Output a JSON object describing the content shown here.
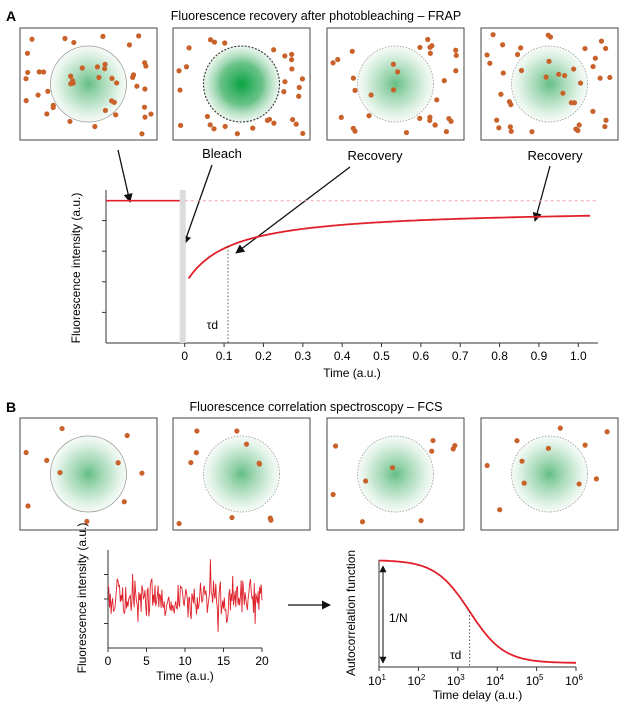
{
  "panel_a": {
    "letter": "A",
    "title": "Fluorescence recovery after photobleaching – FRAP",
    "callouts": [
      "Bleach",
      "Recovery",
      "Recovery"
    ],
    "tau_label": "τd"
  },
  "panel_b": {
    "letter": "B",
    "title": "Fluorescence correlation spectroscopy – FCS",
    "n_label": "1/N",
    "tau_label": "τd"
  },
  "colors": {
    "dot": "#c9622a",
    "curve": "#e0202a",
    "spot": "#2fa85a",
    "frame": "#444444"
  },
  "chart_data": [
    {
      "type": "line",
      "title": "",
      "xlabel": "Time (a.u.)",
      "ylabel": "Fluorescence intensity (a.u.)",
      "xlim": [
        -0.2,
        1.05
      ],
      "x_ticks": [
        "0",
        "0.1",
        "0.2",
        "0.3",
        "0.4",
        "0.5",
        "0.6",
        "0.7",
        "0.8",
        "0.9",
        "1.0"
      ],
      "pre_bleach_level": 0.93,
      "bleach_level": 0.38,
      "plateau": 0.88,
      "tau_d": 0.11,
      "grid": false
    },
    {
      "type": "line",
      "title": "",
      "xlabel": "Time (a.u.)",
      "ylabel": "Fluorescence intensity (a.u.)",
      "xlim": [
        0,
        20
      ],
      "x_ticks": [
        "0",
        "5",
        "10",
        "15",
        "20"
      ],
      "mean_level": 0.5,
      "grid": false
    },
    {
      "type": "line",
      "title": "",
      "xlabel": "Time delay (a.u.)",
      "ylabel": "Autocorrelation function",
      "x_scale": "log",
      "xlim": [
        10,
        1000000
      ],
      "x_tick_exponents": [
        "1",
        "2",
        "3",
        "4",
        "5",
        "6"
      ],
      "tau_d": 2000,
      "amplitude_label": "1/N",
      "grid": false
    }
  ]
}
